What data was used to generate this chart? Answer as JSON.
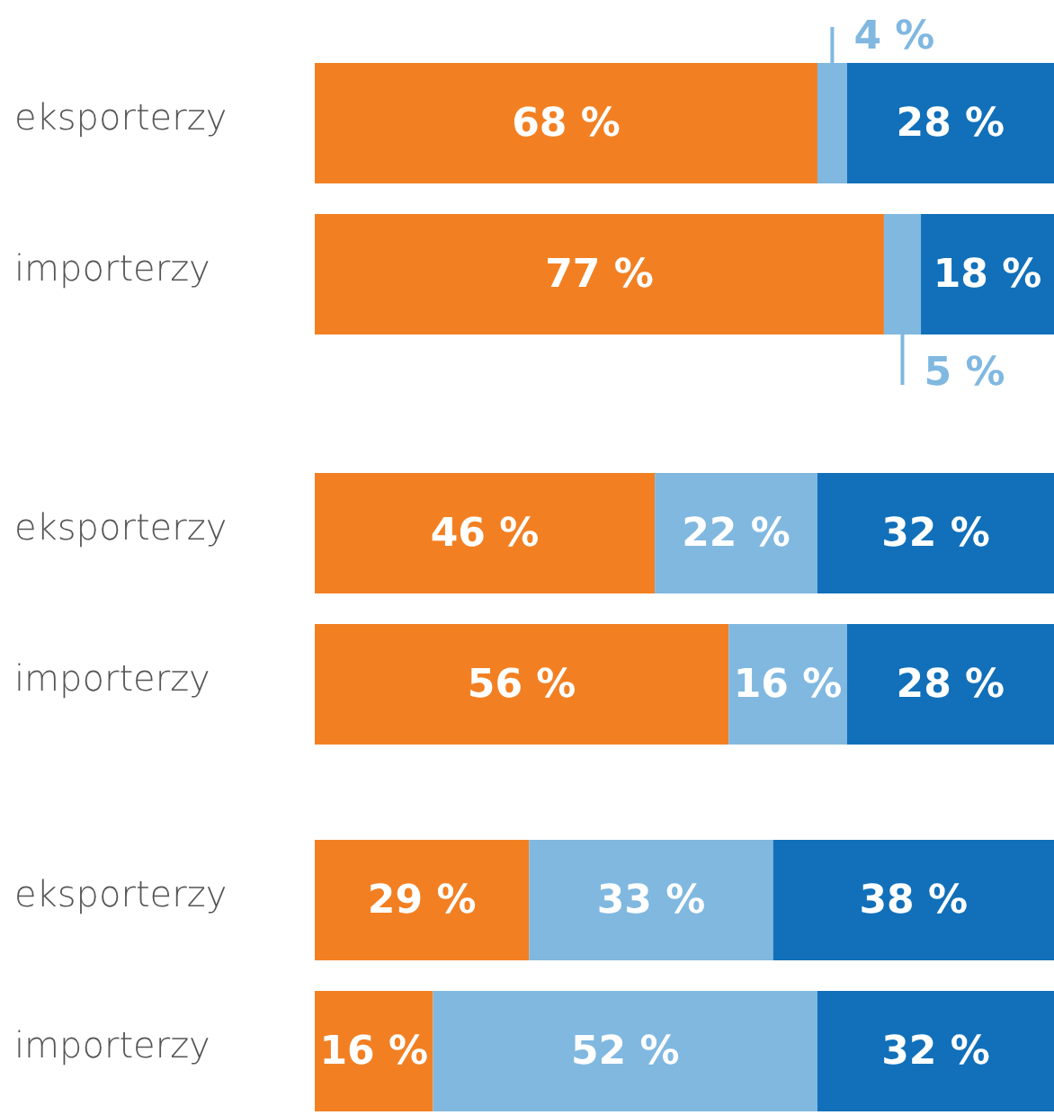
{
  "chart_data": [
    {
      "type": "bar",
      "orientation": "horizontal",
      "stacked": true,
      "categories": [
        "eksporterzy",
        "importerzy"
      ],
      "xlim": [
        0,
        100
      ],
      "tick_labels": "y",
      "series": [
        {
          "color": "#f28023",
          "values": [
            68,
            77
          ],
          "value_labels": [
            "68 %",
            "77 %"
          ]
        },
        {
          "color": "#80b8e0",
          "values": [
            4,
            5
          ],
          "value_labels": [
            "4 %",
            "5 %"
          ]
        },
        {
          "color": "#1170b9",
          "values": [
            28,
            18
          ],
          "value_labels": [
            "28 %",
            "18 %"
          ]
        }
      ]
    },
    {
      "type": "bar",
      "orientation": "horizontal",
      "stacked": true,
      "categories": [
        "eksporterzy",
        "importerzy"
      ],
      "xlim": [
        0,
        100
      ],
      "tick_labels": "y",
      "series": [
        {
          "color": "#f28023",
          "values": [
            46,
            56
          ],
          "value_labels": [
            "46 %",
            "56 %"
          ]
        },
        {
          "color": "#80b8e0",
          "values": [
            22,
            16
          ],
          "value_labels": [
            "22 %",
            "16 %"
          ]
        },
        {
          "color": "#1170b9",
          "values": [
            32,
            28
          ],
          "value_labels": [
            "32 %",
            "28 %"
          ]
        }
      ]
    },
    {
      "type": "bar",
      "orientation": "horizontal",
      "stacked": true,
      "categories": [
        "eksporterzy",
        "importerzy"
      ],
      "xlim": [
        0,
        100
      ],
      "tick_labels": "y",
      "series": [
        {
          "color": "#f28023",
          "values": [
            29,
            16
          ],
          "value_labels": [
            "29 %",
            "16 %"
          ]
        },
        {
          "color": "#80b8e0",
          "values": [
            33,
            52
          ],
          "value_labels": [
            "33 %",
            "52 %"
          ]
        },
        {
          "color": "#1170b9",
          "values": [
            38,
            32
          ],
          "value_labels": [
            "38 %",
            "32 %"
          ]
        }
      ]
    }
  ]
}
